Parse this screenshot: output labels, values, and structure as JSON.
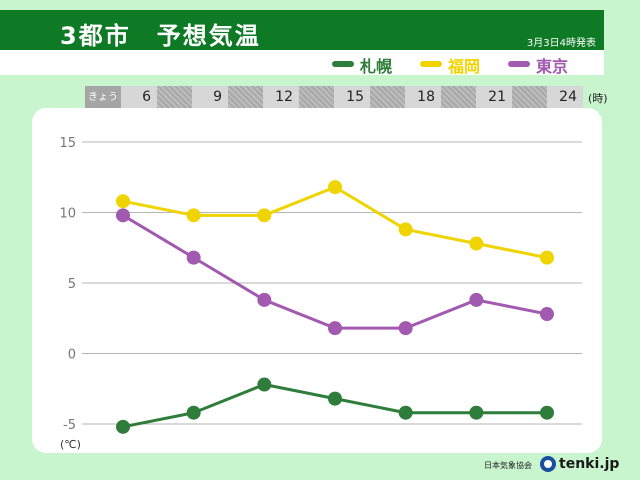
{
  "header": {
    "title": "3都市　予想気温",
    "issued": "3月3日4時発表"
  },
  "legend": [
    {
      "name": "札幌",
      "color": "#2e7d3a"
    },
    {
      "name": "福岡",
      "color": "#f0d400"
    },
    {
      "name": "東京",
      "color": "#a259b0"
    }
  ],
  "time_bar": {
    "label": "きょう",
    "hours": [
      "6",
      "9",
      "12",
      "15",
      "18",
      "21",
      "24"
    ],
    "unit": "(時)"
  },
  "chart_data": {
    "type": "line",
    "x": [
      6,
      9,
      12,
      15,
      18,
      21,
      24
    ],
    "ylim": [
      -5,
      15
    ],
    "yticks": [
      15,
      10,
      5,
      0,
      -5
    ],
    "ylabel": "(℃)",
    "grid": true,
    "series": [
      {
        "name": "札幌",
        "color": "#2e7d3a",
        "values": [
          -5.2,
          -4.2,
          -2.2,
          -3.2,
          -4.2,
          -4.2,
          -4.2
        ]
      },
      {
        "name": "福岡",
        "color": "#f0d400",
        "values": [
          10.8,
          9.8,
          9.8,
          11.8,
          8.8,
          7.8,
          6.8
        ]
      },
      {
        "name": "東京",
        "color": "#a259b0",
        "values": [
          9.8,
          6.8,
          3.8,
          1.8,
          1.8,
          3.8,
          2.8
        ]
      }
    ]
  },
  "footer": {
    "org": "日本気象協会",
    "brand": "tenki.jp",
    "logo_icon": "tenki-logo-icon"
  }
}
